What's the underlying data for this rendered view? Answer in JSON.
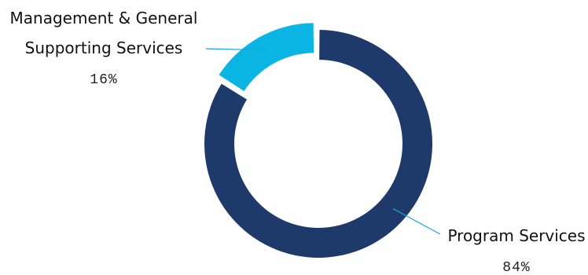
{
  "chart_data": {
    "type": "pie",
    "subtype": "donut",
    "slices": [
      {
        "label_lines": [
          "Program Services"
        ],
        "percent_label": "84%",
        "value": 84,
        "color": "#1e3a6b"
      },
      {
        "label_lines": [
          "Management & General",
          "Supporting Services"
        ],
        "percent_label": "16%",
        "value": 16,
        "color": "#0ab4e3",
        "exploded": true
      }
    ],
    "leader_line_color": "#1aa6d8"
  }
}
